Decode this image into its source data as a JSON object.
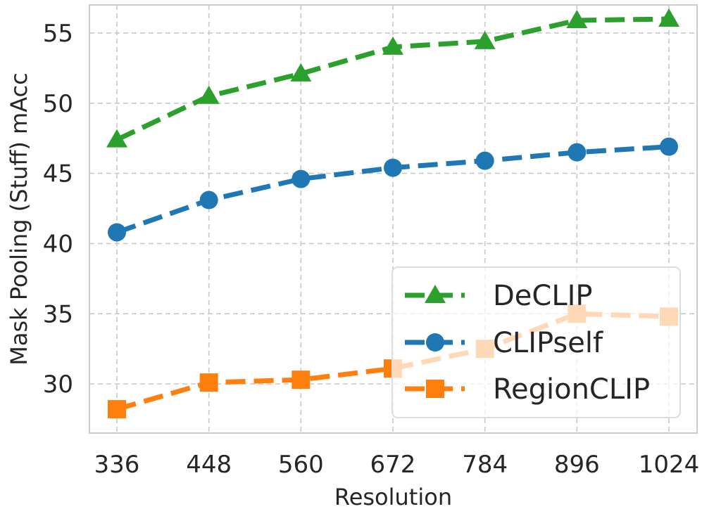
{
  "chart_data": {
    "type": "line",
    "title": "",
    "xlabel": "Resolution",
    "ylabel": "Mask Pooling (Stuff) mAcc",
    "categories": [
      "336",
      "448",
      "560",
      "672",
      "784",
      "896",
      "1024"
    ],
    "yticks": [
      30,
      35,
      40,
      45,
      50,
      55
    ],
    "ylim": [
      26.5,
      57.0
    ],
    "grid": true,
    "legend_position": "bottom-right",
    "series": [
      {
        "name": "DeCLIP",
        "color": "#2ca02c",
        "marker": "triangle",
        "values": [
          47.4,
          50.5,
          52.1,
          54.0,
          54.4,
          55.9,
          56.0
        ]
      },
      {
        "name": "CLIPself",
        "color": "#1f77b4",
        "marker": "circle",
        "values": [
          40.8,
          43.1,
          44.6,
          45.4,
          45.9,
          46.5,
          46.9
        ]
      },
      {
        "name": "RegionCLIP",
        "color": "#ff7f0e",
        "marker": "square",
        "values": [
          28.2,
          30.1,
          30.3,
          31.1,
          32.5,
          35.0,
          34.8
        ]
      }
    ]
  }
}
